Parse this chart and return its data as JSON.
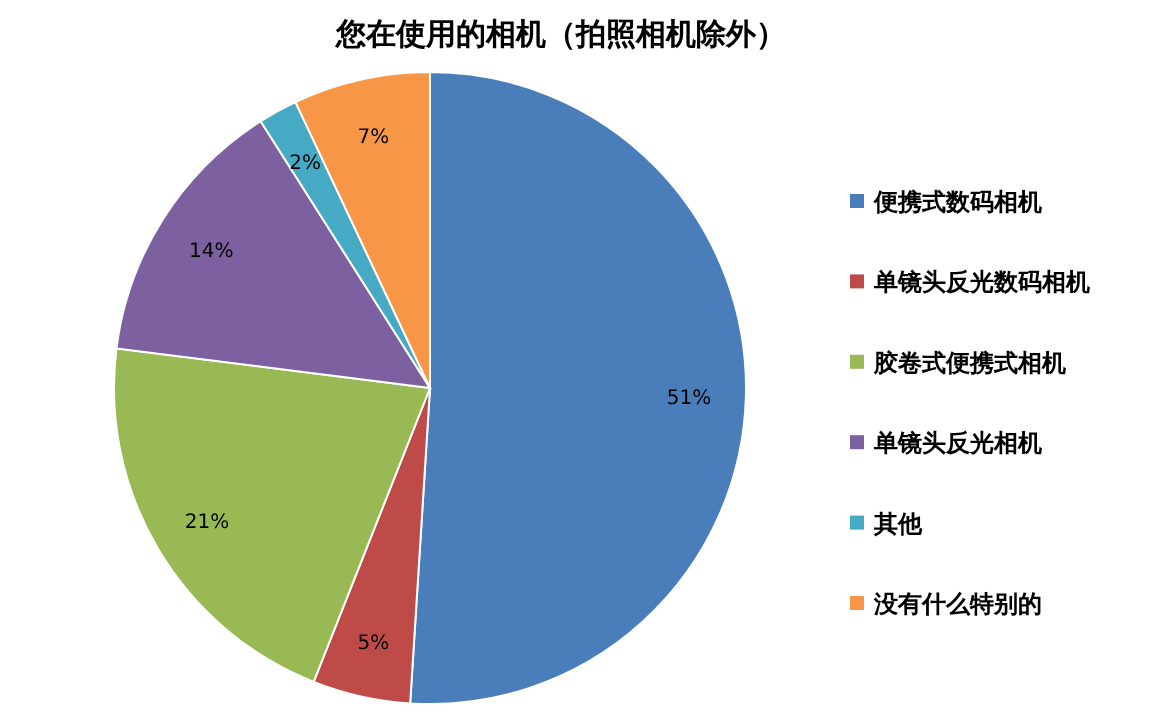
{
  "chart_data": {
    "type": "pie",
    "title": "您在使用的相机（拍照相机除外）",
    "categories": [
      "便携式数码相机",
      "单镜头反光数码相机",
      "胶卷式便携式相机",
      "单镜头反光相机",
      "其他",
      "没有什么特别的"
    ],
    "values": [
      51,
      5,
      21,
      14,
      2,
      7
    ],
    "value_labels": [
      "51%",
      "5%",
      "21%",
      "14%",
      "2%",
      "7%"
    ],
    "colors": [
      "#4a7ebb",
      "#be4b48",
      "#98b954",
      "#7d60a0",
      "#46aac5",
      "#f79646"
    ],
    "legend": "right"
  }
}
